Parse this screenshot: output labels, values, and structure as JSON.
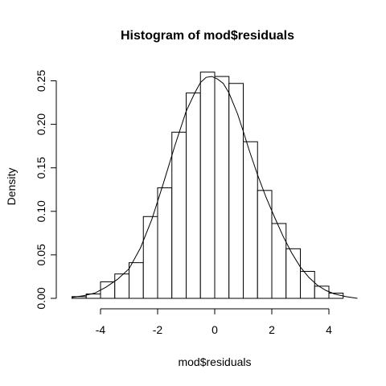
{
  "chart_data": {
    "type": "histogram",
    "title": "Histogram of mod$residuals",
    "xlabel": "mod$residuals",
    "ylabel": "Density",
    "x_ticks": [
      -4,
      -2,
      0,
      2,
      4
    ],
    "x_tick_labels": [
      "-4",
      "-2",
      "0",
      "2",
      "4"
    ],
    "y_ticks": [
      0,
      0.05,
      0.1,
      0.15,
      0.2,
      0.25
    ],
    "y_tick_labels": [
      "0.00",
      "0.05",
      "0.10",
      "0.15",
      "0.20",
      "0.25"
    ],
    "xlim": [
      -5,
      5
    ],
    "ylim": [
      0,
      0.26
    ],
    "bin_width": 0.5,
    "bins": [
      {
        "x0": -5.0,
        "x1": -4.5,
        "density": 0.002
      },
      {
        "x0": -4.5,
        "x1": -4.0,
        "density": 0.005
      },
      {
        "x0": -4.0,
        "x1": -3.5,
        "density": 0.019
      },
      {
        "x0": -3.5,
        "x1": -3.0,
        "density": 0.028
      },
      {
        "x0": -3.0,
        "x1": -2.5,
        "density": 0.041
      },
      {
        "x0": -2.5,
        "x1": -2.0,
        "density": 0.094
      },
      {
        "x0": -2.0,
        "x1": -1.5,
        "density": 0.127
      },
      {
        "x0": -1.5,
        "x1": -1.0,
        "density": 0.191
      },
      {
        "x0": -1.0,
        "x1": -0.5,
        "density": 0.236
      },
      {
        "x0": -0.5,
        "x1": 0.0,
        "density": 0.26
      },
      {
        "x0": 0.0,
        "x1": 0.5,
        "density": 0.255
      },
      {
        "x0": 0.5,
        "x1": 1.0,
        "density": 0.247
      },
      {
        "x0": 1.0,
        "x1": 1.5,
        "density": 0.18
      },
      {
        "x0": 1.5,
        "x1": 2.0,
        "density": 0.124
      },
      {
        "x0": 2.0,
        "x1": 2.5,
        "density": 0.086
      },
      {
        "x0": 2.5,
        "x1": 3.0,
        "density": 0.057
      },
      {
        "x0": 3.0,
        "x1": 3.5,
        "density": 0.031
      },
      {
        "x0": 3.5,
        "x1": 4.0,
        "density": 0.014
      },
      {
        "x0": 4.0,
        "x1": 4.5,
        "density": 0.006
      }
    ],
    "density_curve": {
      "x": [
        -5.0,
        -4.6,
        -4.2,
        -3.8,
        -3.4,
        -3.0,
        -2.6,
        -2.2,
        -1.8,
        -1.4,
        -1.0,
        -0.7,
        -0.5,
        -0.3,
        -0.1,
        0.1,
        0.3,
        0.5,
        0.8,
        1.0,
        1.2,
        1.5,
        1.8,
        2.1,
        2.4,
        2.7,
        3.0,
        3.3,
        3.6,
        3.9,
        4.2,
        4.6,
        5.0
      ],
      "y": [
        0.001,
        0.003,
        0.006,
        0.013,
        0.022,
        0.034,
        0.058,
        0.091,
        0.132,
        0.175,
        0.215,
        0.236,
        0.248,
        0.254,
        0.255,
        0.252,
        0.247,
        0.236,
        0.212,
        0.192,
        0.171,
        0.142,
        0.116,
        0.093,
        0.071,
        0.052,
        0.036,
        0.024,
        0.015,
        0.009,
        0.005,
        0.002,
        0.0
      ]
    }
  }
}
